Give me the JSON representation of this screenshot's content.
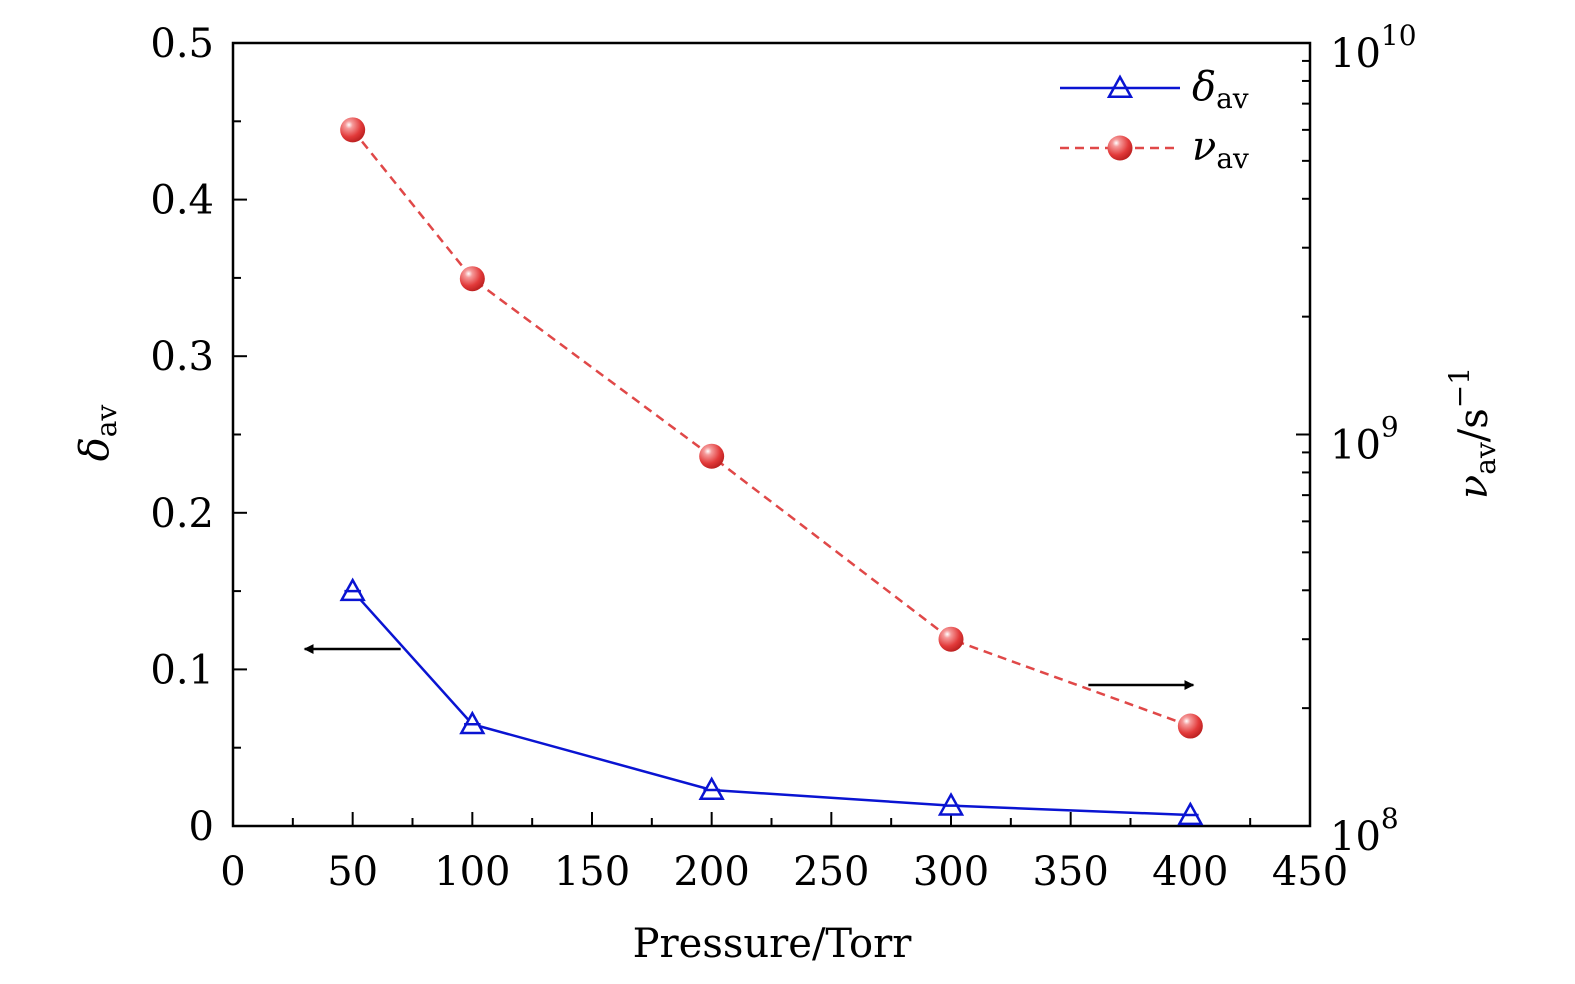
{
  "chart_data": {
    "type": "line",
    "xlabel": "Pressure/Torr",
    "x_ticks": [
      0,
      50,
      100,
      150,
      200,
      250,
      300,
      350,
      400,
      450
    ],
    "xlim": [
      0,
      450
    ],
    "y_left": {
      "label_main": "δ",
      "label_sub": "av",
      "ylim": [
        0,
        0.5
      ],
      "ticks": [
        "0",
        "0.1",
        "0.2",
        "0.3",
        "0.4",
        "0.5"
      ],
      "tick_values": [
        0,
        0.1,
        0.2,
        0.3,
        0.4,
        0.5
      ]
    },
    "y_right": {
      "label_main": "ν",
      "label_sub": "av",
      "label_unit": "/s",
      "label_sup": "−1",
      "scale": "log",
      "ylim": [
        100000000,
        10000000000
      ],
      "ticks": [
        {
          "base": "10",
          "exp": "8",
          "value": 100000000
        },
        {
          "base": "10",
          "exp": "9",
          "value": 1000000000
        },
        {
          "base": "10",
          "exp": "10",
          "value": 10000000000
        }
      ]
    },
    "series": [
      {
        "name_main": "δ",
        "name_sub": "av",
        "axis": "left",
        "color": "#0a14d2",
        "line_style": "solid",
        "marker": "triangle-open",
        "x": [
          50,
          100,
          200,
          300,
          400
        ],
        "y": [
          0.15,
          0.065,
          0.023,
          0.013,
          0.007
        ]
      },
      {
        "name_main": "ν",
        "name_sub": "av",
        "axis": "right",
        "color": "#e04848",
        "line_style": "dashed",
        "marker": "sphere-filled",
        "x": [
          50,
          100,
          200,
          300,
          400
        ],
        "y": [
          6000000000,
          2500000000,
          880000000,
          300000000,
          180000000
        ]
      }
    ],
    "annotations": [
      {
        "type": "arrow",
        "direction": "left",
        "axis_hint": "left",
        "near_x": 50,
        "y": 0.113
      },
      {
        "type": "arrow",
        "direction": "right",
        "axis_hint": "right",
        "near_x": 400,
        "y": 0.09
      }
    ],
    "legend": "top-right",
    "grid": false
  }
}
